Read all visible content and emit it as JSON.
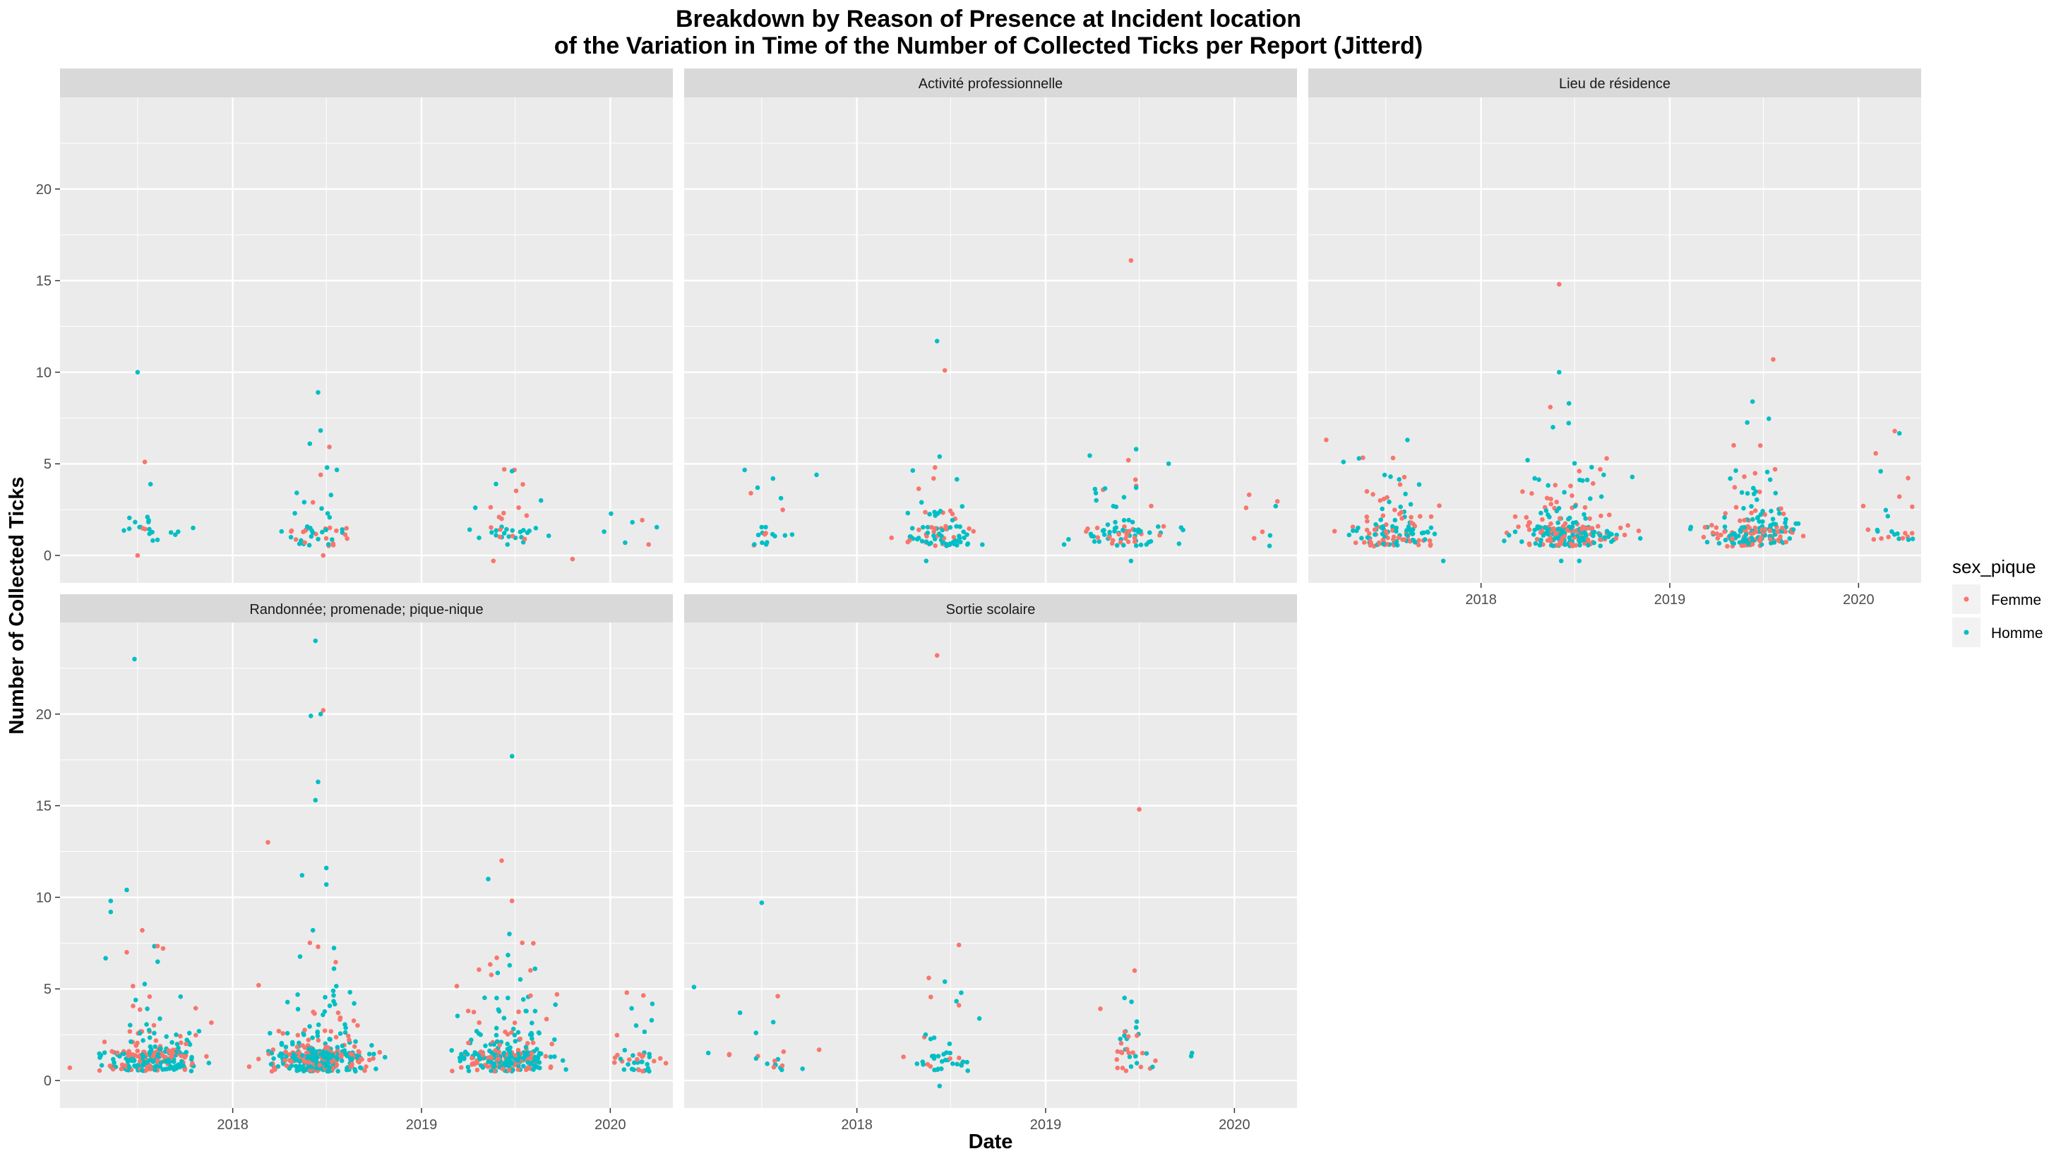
{
  "chart_data": {
    "type": "scatter",
    "title": "Breakdown by Reason of Presence at Incident location",
    "subtitle": "of the Variation in Time of the Number of Collected Ticks per Report (Jitterd)",
    "xlabel": "Date",
    "ylabel": "Number of Collected Ticks",
    "x_range": [
      "2017-02",
      "2020-05"
    ],
    "ylim": [
      -1.5,
      25
    ],
    "x_ticks": [
      "2018",
      "2019",
      "2020"
    ],
    "y_ticks": [
      "0",
      "5",
      "10",
      "15",
      "20"
    ],
    "legend": {
      "title": "sex_pique",
      "entries": [
        "Femme",
        "Homme"
      ],
      "position": "right"
    },
    "colors": {
      "Femme": "#F8766D",
      "Homme": "#00BFC4",
      "panel": "#EBEBEB",
      "grid": "#FFFFFF",
      "strip": "#D9D9D9"
    },
    "grid": true,
    "facets": [
      {
        "label": "",
        "points": {
          "Femme": [
            [
              "2017-07-15",
              5.1
            ],
            [
              "2017-07-01",
              0
            ],
            [
              "2018-06-20",
              4.4
            ],
            [
              "2018-06-05",
              2.9
            ],
            [
              "2018-06-25",
              0
            ],
            [
              "2019-06-10",
              4.7
            ],
            [
              "2019-05-20",
              -0.3
            ],
            [
              "2019-10-20",
              -0.2
            ],
            [
              "2019-06-05",
              2.0
            ]
          ],
          "Homme": [
            [
              "2017-07-01",
              10.0
            ],
            [
              "2017-07-20",
              2.1
            ],
            [
              "2018-06-15",
              8.9
            ],
            [
              "2018-05-30",
              6.1
            ],
            [
              "2018-05-01",
              2.3
            ],
            [
              "2018-07-10",
              3.3
            ],
            [
              "2019-06-25",
              4.6
            ],
            [
              "2019-05-25",
              3.9
            ],
            [
              "2019-08-20",
              3.0
            ],
            [
              "2019-12-20",
              1.3
            ]
          ]
        },
        "clusters": [
          {
            "center": "2017-08-01",
            "spread_days": 55,
            "n": 20,
            "femme_share": 0.3
          },
          {
            "center": "2018-06-15",
            "spread_days": 65,
            "n": 45,
            "femme_share": 0.35
          },
          {
            "center": "2019-06-15",
            "spread_days": 70,
            "n": 35,
            "femme_share": 0.35
          },
          {
            "center": "2020-02-10",
            "spread_days": 50,
            "n": 6,
            "femme_share": 0.5
          }
        ]
      },
      {
        "label": "Activité professionnelle",
        "points": {
          "Femme": [
            [
              "2018-06-20",
              10.1
            ],
            [
              "2018-06-01",
              4.8
            ],
            [
              "2017-06-10",
              3.4
            ],
            [
              "2019-06-15",
              16.1
            ],
            [
              "2019-06-10",
              5.2
            ],
            [
              "2019-06-25",
              3.8
            ]
          ],
          "Homme": [
            [
              "2018-06-05",
              11.7
            ],
            [
              "2018-06-10",
              5.4
            ],
            [
              "2017-10-15",
              4.4
            ],
            [
              "2019-06-25",
              5.8
            ],
            [
              "2018-05-15",
              -0.3
            ],
            [
              "2019-06-15",
              -0.3
            ],
            [
              "2019-06-25",
              3.7
            ]
          ]
        },
        "clusters": [
          {
            "center": "2017-07-20",
            "spread_days": 60,
            "n": 20,
            "femme_share": 0.3
          },
          {
            "center": "2018-06-10",
            "spread_days": 75,
            "n": 85,
            "femme_share": 0.3
          },
          {
            "center": "2019-06-10",
            "spread_days": 80,
            "n": 80,
            "femme_share": 0.25
          },
          {
            "center": "2020-02-20",
            "spread_days": 50,
            "n": 8,
            "femme_share": 0.4
          }
        ]
      },
      {
        "label": "Lieu de résidence",
        "points": {
          "Femme": [
            [
              "2018-06-01",
              14.8
            ],
            [
              "2019-07-20",
              10.7
            ],
            [
              "2018-05-15",
              8.1
            ],
            [
              "2019-06-25",
              6.0
            ],
            [
              "2018-09-01",
              5.3
            ],
            [
              "2018-07-10",
              4.6
            ],
            [
              "2019-05-25",
              4.3
            ],
            [
              "2020-01-10",
              2.7
            ],
            [
              "2017-06-20",
              3.0
            ]
          ],
          "Homme": [
            [
              "2018-06-01",
              10.0
            ],
            [
              "2019-06-10",
              8.4
            ],
            [
              "2018-06-20",
              8.3
            ],
            [
              "2018-05-20",
              7.0
            ],
            [
              "2017-05-10",
              5.3
            ],
            [
              "2017-04-10",
              5.1
            ],
            [
              "2017-07-10",
              4.3
            ],
            [
              "2018-04-01",
              5.2
            ],
            [
              "2018-06-05",
              -0.3
            ],
            [
              "2018-07-10",
              -0.3
            ],
            [
              "2017-10-20",
              -0.3
            ]
          ]
        },
        "clusters": [
          {
            "center": "2017-07-15",
            "spread_days": 90,
            "n": 130,
            "femme_share": 0.45
          },
          {
            "center": "2018-06-15",
            "spread_days": 90,
            "n": 230,
            "femme_share": 0.45
          },
          {
            "center": "2019-06-15",
            "spread_days": 90,
            "n": 190,
            "femme_share": 0.45
          },
          {
            "center": "2020-03-01",
            "spread_days": 55,
            "n": 25,
            "femme_share": 0.5
          }
        ]
      },
      {
        "label": "Randonnée; promenade; pique-nique",
        "points": {
          "Femme": [
            [
              "2018-06-25",
              20.2
            ],
            [
              "2018-03-10",
              13.0
            ],
            [
              "2019-06-05",
              12.0
            ],
            [
              "2019-06-25",
              9.8
            ],
            [
              "2017-07-10",
              8.2
            ],
            [
              "2017-06-10",
              7.0
            ],
            [
              "2018-06-15",
              7.3
            ],
            [
              "2019-09-20",
              4.7
            ],
            [
              "2018-02-20",
              5.2
            ],
            [
              "2017-02-20",
              0.7
            ]
          ],
          "Homme": [
            [
              "2017-06-25",
              23.0
            ],
            [
              "2018-06-10",
              24.0
            ],
            [
              "2018-06-20",
              20.0
            ],
            [
              "2018-06-01",
              19.9
            ],
            [
              "2019-06-25",
              17.7
            ],
            [
              "2018-06-15",
              16.3
            ],
            [
              "2018-06-10",
              15.3
            ],
            [
              "2018-07-01",
              11.6
            ],
            [
              "2018-05-15",
              11.2
            ],
            [
              "2019-05-10",
              11.0
            ],
            [
              "2017-06-10",
              10.4
            ],
            [
              "2017-05-10",
              9.8
            ],
            [
              "2017-05-10",
              9.2
            ],
            [
              "2018-07-01",
              10.7
            ],
            [
              "2019-06-20",
              8.0
            ],
            [
              "2018-06-05",
              8.2
            ],
            [
              "2020-02-20",
              3.0
            ]
          ]
        },
        "clusters": [
          {
            "center": "2017-08-01",
            "spread_days": 90,
            "n": 260,
            "femme_share": 0.4
          },
          {
            "center": "2018-06-15",
            "spread_days": 90,
            "n": 360,
            "femme_share": 0.4
          },
          {
            "center": "2019-06-15",
            "spread_days": 95,
            "n": 300,
            "femme_share": 0.4
          },
          {
            "center": "2020-03-01",
            "spread_days": 60,
            "n": 40,
            "femme_share": 0.4
          }
        ]
      },
      {
        "label": "Sortie scolaire",
        "points": {
          "Femme": [
            [
              "2018-06-05",
              23.2
            ],
            [
              "2019-07-01",
              14.8
            ],
            [
              "2018-05-20",
              5.6
            ],
            [
              "2017-08-01",
              4.6
            ],
            [
              "2019-06-10",
              2.4
            ]
          ],
          "Homme": [
            [
              "2017-07-01",
              9.7
            ],
            [
              "2017-02-20",
              5.1
            ],
            [
              "2018-06-20",
              5.4
            ],
            [
              "2017-05-20",
              3.7
            ],
            [
              "2017-06-20",
              2.6
            ],
            [
              "2019-06-25",
              2.9
            ],
            [
              "2018-06-10",
              -0.3
            ]
          ]
        },
        "clusters": [
          {
            "center": "2017-07-10",
            "spread_days": 70,
            "n": 18,
            "femme_share": 0.3
          },
          {
            "center": "2018-06-10",
            "spread_days": 55,
            "n": 40,
            "femme_share": 0.25
          },
          {
            "center": "2019-06-10",
            "spread_days": 50,
            "n": 35,
            "femme_share": 0.55
          },
          {
            "center": "2019-10-10",
            "spread_days": 10,
            "n": 2,
            "femme_share": 0.0
          }
        ]
      }
    ]
  }
}
